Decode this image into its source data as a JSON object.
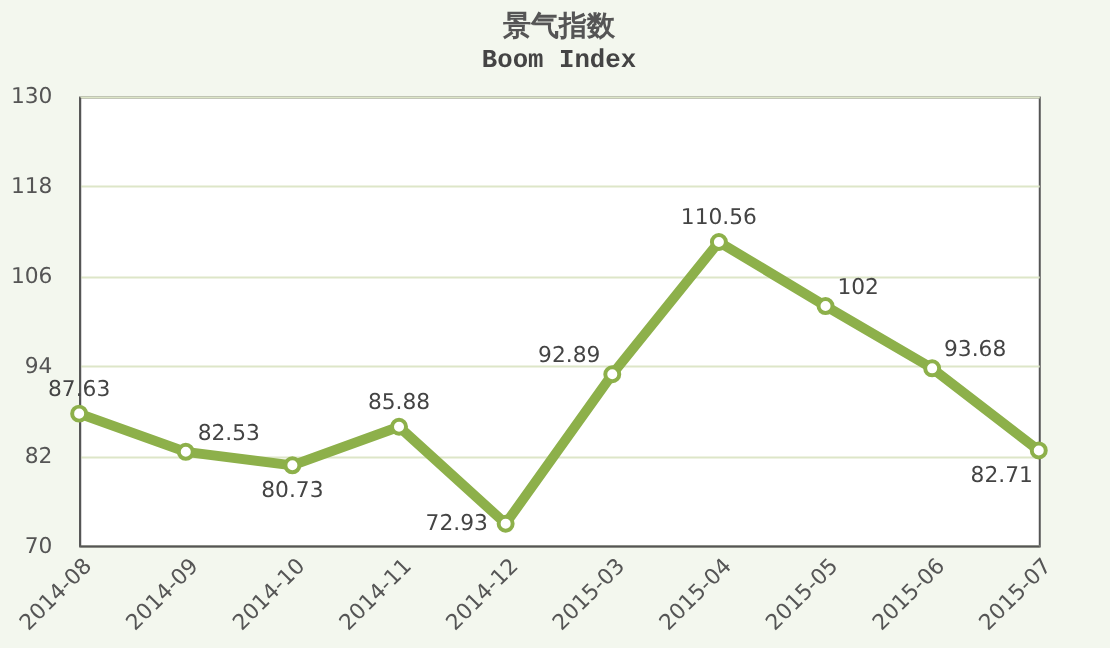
{
  "chart_data": {
    "type": "line",
    "title": "景气指数",
    "subtitle": "Boom Index",
    "categories": [
      "2014-08",
      "2014-09",
      "2014-10",
      "2014-11",
      "2014-12",
      "2015-03",
      "2015-04",
      "2015-05",
      "2015-06",
      "2015-07"
    ],
    "series": [
      {
        "color": "#8db04a",
        "values": [
          87.63,
          82.53,
          80.73,
          85.88,
          72.93,
          92.89,
          110.56,
          102,
          93.68,
          82.71
        ]
      }
    ],
    "ylim": [
      70,
      130
    ],
    "yticks": [
      70,
      82,
      94,
      106,
      118,
      130
    ],
    "grid": "y",
    "marker": "circle",
    "line_style": "solid",
    "data_labels": true
  }
}
